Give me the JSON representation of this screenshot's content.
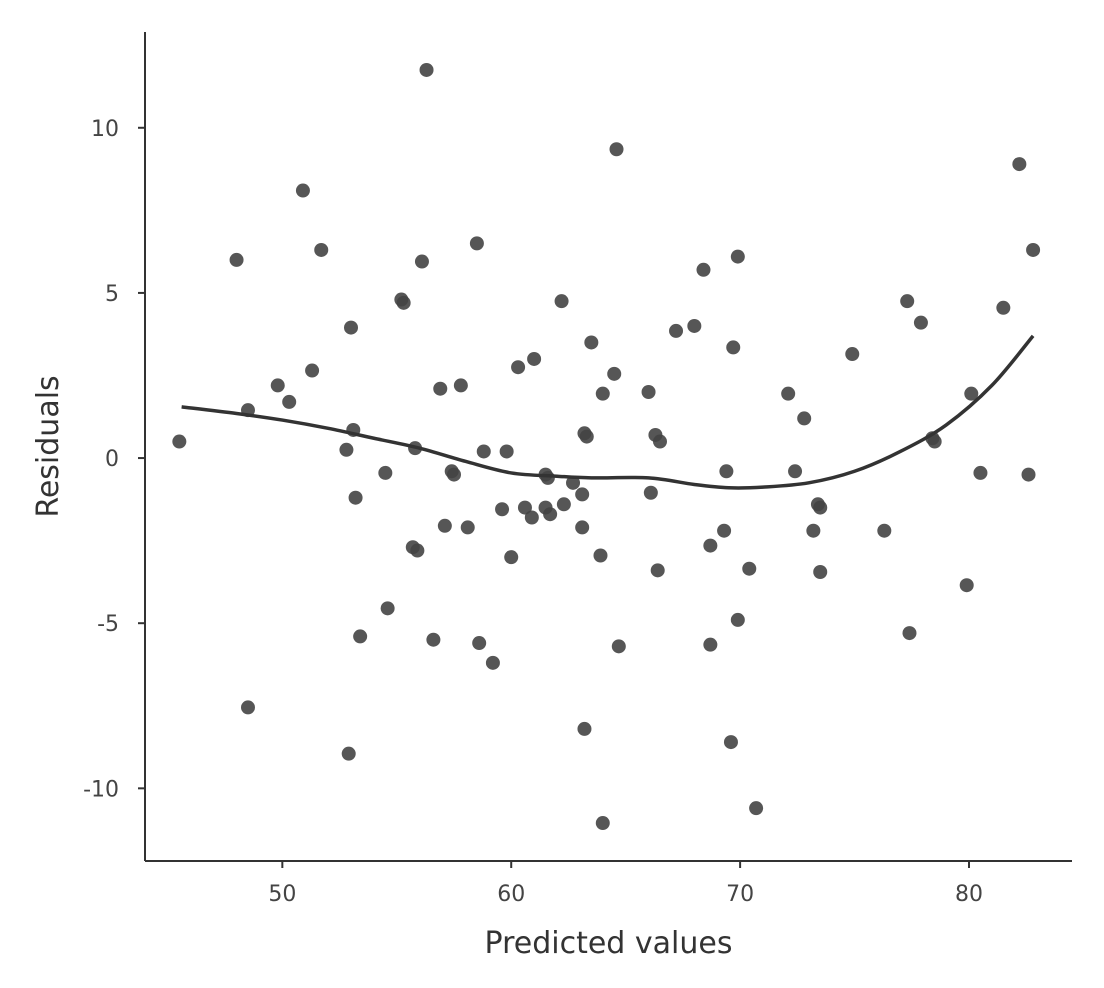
{
  "chart_data": {
    "type": "scatter",
    "title": "",
    "xlabel": "Predicted values",
    "ylabel": "Residuals",
    "xlim": [
      44,
      84.5
    ],
    "ylim": [
      -12.2,
      12.9
    ],
    "x_ticks": [
      50,
      60,
      70,
      80
    ],
    "y_ticks": [
      -10,
      -5,
      0,
      5,
      10
    ],
    "x_tick_labels": [
      "50",
      "60",
      "70",
      "80"
    ],
    "y_tick_labels": [
      "-10",
      "-5",
      "0",
      "5",
      "10"
    ],
    "grid": false,
    "legend": "none",
    "point_color": "#444444",
    "line_color": "#333333",
    "points": [
      {
        "x": 45.5,
        "y": 0.5
      },
      {
        "x": 48.0,
        "y": 6.0
      },
      {
        "x": 48.5,
        "y": 1.45
      },
      {
        "x": 48.5,
        "y": -7.55
      },
      {
        "x": 49.8,
        "y": 2.2
      },
      {
        "x": 50.3,
        "y": 1.7
      },
      {
        "x": 50.9,
        "y": 8.1
      },
      {
        "x": 51.3,
        "y": 2.65
      },
      {
        "x": 51.7,
        "y": 6.3
      },
      {
        "x": 52.8,
        "y": 0.25
      },
      {
        "x": 52.9,
        "y": -8.95
      },
      {
        "x": 53.0,
        "y": 3.95
      },
      {
        "x": 53.1,
        "y": 0.85
      },
      {
        "x": 53.2,
        "y": -1.2
      },
      {
        "x": 53.4,
        "y": -5.4
      },
      {
        "x": 54.5,
        "y": -0.45
      },
      {
        "x": 54.6,
        "y": -4.55
      },
      {
        "x": 55.2,
        "y": 4.8
      },
      {
        "x": 55.3,
        "y": 4.7
      },
      {
        "x": 55.7,
        "y": -2.7
      },
      {
        "x": 55.8,
        "y": 0.3
      },
      {
        "x": 55.9,
        "y": -2.8
      },
      {
        "x": 56.1,
        "y": 5.95
      },
      {
        "x": 56.3,
        "y": 11.75
      },
      {
        "x": 56.6,
        "y": -5.5
      },
      {
        "x": 56.9,
        "y": 2.1
      },
      {
        "x": 57.1,
        "y": -2.05
      },
      {
        "x": 57.4,
        "y": -0.4
      },
      {
        "x": 57.5,
        "y": -0.5
      },
      {
        "x": 57.8,
        "y": 2.2
      },
      {
        "x": 58.1,
        "y": -2.1
      },
      {
        "x": 58.5,
        "y": 6.5
      },
      {
        "x": 58.6,
        "y": -5.6
      },
      {
        "x": 58.8,
        "y": 0.2
      },
      {
        "x": 59.2,
        "y": -6.2
      },
      {
        "x": 59.6,
        "y": -1.55
      },
      {
        "x": 59.8,
        "y": 0.2
      },
      {
        "x": 60.0,
        "y": -3.0
      },
      {
        "x": 60.3,
        "y": 2.75
      },
      {
        "x": 60.6,
        "y": -1.5
      },
      {
        "x": 60.9,
        "y": -1.8
      },
      {
        "x": 61.0,
        "y": 3.0
      },
      {
        "x": 61.5,
        "y": -1.5
      },
      {
        "x": 61.5,
        "y": -0.5
      },
      {
        "x": 61.6,
        "y": -0.6
      },
      {
        "x": 61.7,
        "y": -1.7
      },
      {
        "x": 62.2,
        "y": 4.75
      },
      {
        "x": 62.3,
        "y": -1.4
      },
      {
        "x": 62.7,
        "y": -0.75
      },
      {
        "x": 63.1,
        "y": -1.1
      },
      {
        "x": 63.1,
        "y": -2.1
      },
      {
        "x": 63.2,
        "y": 0.75
      },
      {
        "x": 63.2,
        "y": -8.2
      },
      {
        "x": 63.3,
        "y": 0.65
      },
      {
        "x": 63.5,
        "y": 3.5
      },
      {
        "x": 63.9,
        "y": -2.95
      },
      {
        "x": 64.0,
        "y": 1.95
      },
      {
        "x": 64.0,
        "y": -11.05
      },
      {
        "x": 64.5,
        "y": 2.55
      },
      {
        "x": 64.6,
        "y": 9.35
      },
      {
        "x": 64.7,
        "y": -5.7
      },
      {
        "x": 66.0,
        "y": 2.0
      },
      {
        "x": 66.1,
        "y": -1.05
      },
      {
        "x": 66.3,
        "y": 0.7
      },
      {
        "x": 66.4,
        "y": -3.4
      },
      {
        "x": 66.5,
        "y": 0.5
      },
      {
        "x": 67.2,
        "y": 3.85
      },
      {
        "x": 68.0,
        "y": 4.0
      },
      {
        "x": 68.4,
        "y": 5.7
      },
      {
        "x": 68.7,
        "y": -2.65
      },
      {
        "x": 68.7,
        "y": -5.65
      },
      {
        "x": 69.3,
        "y": -2.2
      },
      {
        "x": 69.4,
        "y": -0.4
      },
      {
        "x": 69.6,
        "y": -8.6
      },
      {
        "x": 69.7,
        "y": 3.35
      },
      {
        "x": 69.9,
        "y": 6.1
      },
      {
        "x": 69.9,
        "y": -4.9
      },
      {
        "x": 70.4,
        "y": -3.35
      },
      {
        "x": 70.7,
        "y": -10.6
      },
      {
        "x": 72.1,
        "y": 1.95
      },
      {
        "x": 72.4,
        "y": -0.4
      },
      {
        "x": 72.8,
        "y": 1.2
      },
      {
        "x": 73.2,
        "y": -2.2
      },
      {
        "x": 73.4,
        "y": -1.4
      },
      {
        "x": 73.5,
        "y": -1.5
      },
      {
        "x": 73.5,
        "y": -3.45
      },
      {
        "x": 74.9,
        "y": 3.15
      },
      {
        "x": 76.3,
        "y": -2.2
      },
      {
        "x": 77.3,
        "y": 4.75
      },
      {
        "x": 77.4,
        "y": -5.3
      },
      {
        "x": 77.9,
        "y": 4.1
      },
      {
        "x": 78.4,
        "y": 0.6
      },
      {
        "x": 78.5,
        "y": 0.5
      },
      {
        "x": 79.9,
        "y": -3.85
      },
      {
        "x": 80.1,
        "y": 1.95
      },
      {
        "x": 80.5,
        "y": -0.45
      },
      {
        "x": 81.5,
        "y": 4.55
      },
      {
        "x": 82.2,
        "y": 8.9
      },
      {
        "x": 82.6,
        "y": -0.5
      },
      {
        "x": 82.8,
        "y": 6.3
      }
    ],
    "smooth_line": [
      {
        "x": 45.6,
        "y": 1.55
      },
      {
        "x": 48.0,
        "y": 1.35
      },
      {
        "x": 50.0,
        "y": 1.15
      },
      {
        "x": 52.0,
        "y": 0.9
      },
      {
        "x": 54.0,
        "y": 0.6
      },
      {
        "x": 56.0,
        "y": 0.3
      },
      {
        "x": 58.0,
        "y": -0.1
      },
      {
        "x": 60.0,
        "y": -0.45
      },
      {
        "x": 62.0,
        "y": -0.55
      },
      {
        "x": 63.5,
        "y": -0.6
      },
      {
        "x": 66.0,
        "y": -0.6
      },
      {
        "x": 68.0,
        "y": -0.8
      },
      {
        "x": 69.5,
        "y": -0.9
      },
      {
        "x": 71.0,
        "y": -0.88
      },
      {
        "x": 73.0,
        "y": -0.75
      },
      {
        "x": 75.0,
        "y": -0.4
      },
      {
        "x": 77.0,
        "y": 0.2
      },
      {
        "x": 79.0,
        "y": 1.0
      },
      {
        "x": 81.0,
        "y": 2.2
      },
      {
        "x": 82.8,
        "y": 3.7
      }
    ]
  }
}
